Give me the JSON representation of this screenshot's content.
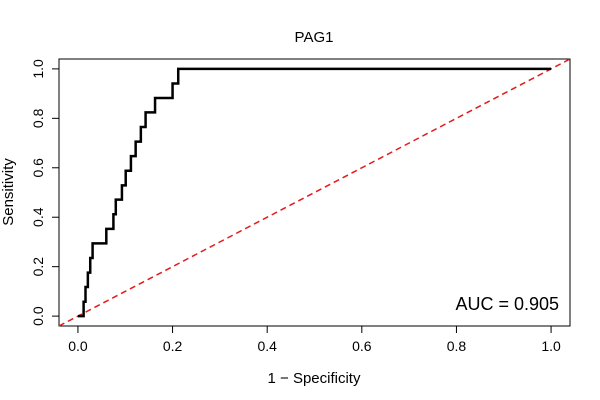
{
  "chart_data": {
    "type": "line",
    "title": "PAG1",
    "xlabel": "1 − Specificity",
    "ylabel": "Sensitivity",
    "xlim": [
      -0.04,
      1.04
    ],
    "ylim": [
      -0.04,
      1.04
    ],
    "xticks": [
      0.0,
      0.2,
      0.4,
      0.6,
      0.8,
      1.0
    ],
    "xtick_labels": [
      "0.0",
      "0.2",
      "0.4",
      "0.6",
      "0.8",
      "1.0"
    ],
    "yticks": [
      0.0,
      0.2,
      0.4,
      0.6,
      0.8,
      1.0
    ],
    "ytick_labels": [
      "0.0",
      "0.2",
      "0.4",
      "0.6",
      "0.8",
      "1.0"
    ],
    "annotation": "AUC = 0.905",
    "series": [
      {
        "name": "ROC",
        "color": "#000000",
        "x": [
          0.0,
          0.012,
          0.012,
          0.016,
          0.016,
          0.021,
          0.021,
          0.026,
          0.026,
          0.031,
          0.031,
          0.06,
          0.06,
          0.075,
          0.075,
          0.08,
          0.08,
          0.093,
          0.093,
          0.101,
          0.101,
          0.112,
          0.112,
          0.122,
          0.122,
          0.133,
          0.133,
          0.143,
          0.143,
          0.153,
          0.153,
          0.163,
          0.163,
          0.2,
          0.2,
          0.212,
          0.212,
          1.0
        ],
        "y": [
          0.0,
          0.0,
          0.058,
          0.058,
          0.118,
          0.118,
          0.176,
          0.176,
          0.235,
          0.235,
          0.294,
          0.294,
          0.353,
          0.353,
          0.412,
          0.412,
          0.471,
          0.471,
          0.529,
          0.529,
          0.588,
          0.588,
          0.647,
          0.647,
          0.706,
          0.706,
          0.765,
          0.765,
          0.824,
          0.824,
          0.824,
          0.824,
          0.882,
          0.882,
          0.941,
          0.941,
          1.0,
          1.0
        ]
      },
      {
        "name": "Reference",
        "color": "#e41a1c",
        "dashed": true,
        "x": [
          -0.04,
          1.04
        ],
        "y": [
          -0.04,
          1.04
        ]
      }
    ]
  }
}
